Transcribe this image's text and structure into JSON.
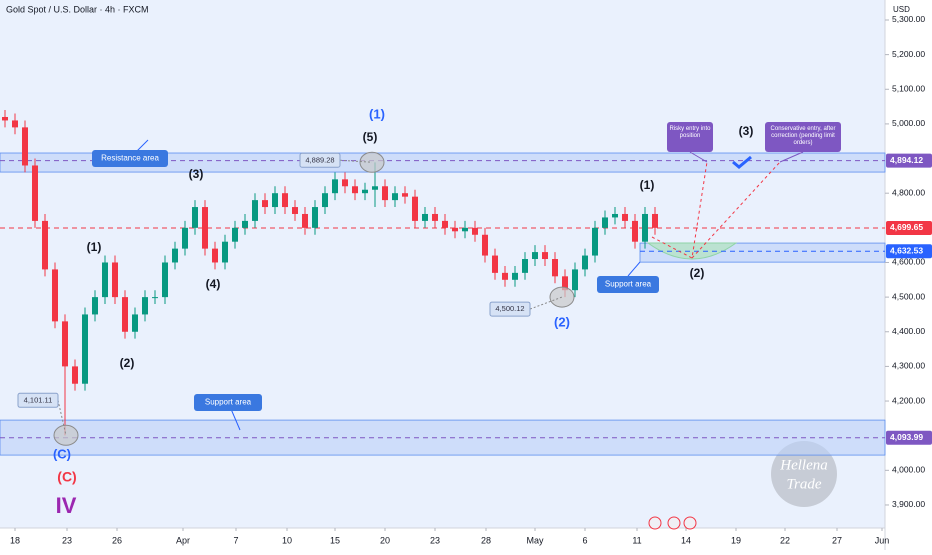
{
  "chart_data": {
    "type": "candlestick",
    "title": "Gold Spot / U.S. Dollar · 4h · FXCM",
    "currency": "USD",
    "watermark": [
      "Hellena",
      "Trade"
    ],
    "up_color": "#089981",
    "down_color": "#f23645",
    "open": [
      5020,
      5010,
      4990,
      4880,
      4720,
      4580,
      4430,
      4300,
      4250,
      4450,
      4500,
      4600,
      4500,
      4400,
      4450,
      4500,
      4500,
      4600,
      4640,
      4700,
      4760,
      4640,
      4600,
      4660,
      4700,
      4720,
      4780,
      4760,
      4800,
      4760,
      4740,
      4700,
      4760,
      4800,
      4840,
      4820,
      4800,
      4810,
      4820,
      4780,
      4800,
      4790,
      4720,
      4740,
      4720,
      4700,
      4690,
      4700,
      4680,
      4620,
      4570,
      4550,
      4570,
      4610,
      4630,
      4610,
      4560,
      4520,
      4580,
      4620,
      4700,
      4730,
      4740,
      4720,
      4660,
      4740
    ],
    "high": [
      5040,
      5030,
      5010,
      4900,
      4740,
      4600,
      4450,
      4320,
      4470,
      4520,
      4620,
      4620,
      4520,
      4470,
      4520,
      4520,
      4620,
      4660,
      4720,
      4780,
      4780,
      4660,
      4680,
      4720,
      4740,
      4800,
      4800,
      4820,
      4820,
      4780,
      4760,
      4780,
      4820,
      4860,
      4860,
      4840,
      4830,
      4889,
      4840,
      4820,
      4820,
      4810,
      4760,
      4760,
      4740,
      4720,
      4720,
      4720,
      4700,
      4640,
      4590,
      4590,
      4630,
      4650,
      4650,
      4630,
      4580,
      4600,
      4640,
      4720,
      4750,
      4760,
      4760,
      4740,
      4760,
      4760
    ],
    "low": [
      4990,
      4970,
      4860,
      4700,
      4560,
      4410,
      4101,
      4230,
      4230,
      4430,
      4480,
      4480,
      4380,
      4380,
      4430,
      4480,
      4480,
      4580,
      4620,
      4680,
      4620,
      4580,
      4580,
      4640,
      4680,
      4700,
      4740,
      4740,
      4740,
      4720,
      4680,
      4680,
      4740,
      4780,
      4800,
      4780,
      4780,
      4760,
      4760,
      4760,
      4770,
      4700,
      4700,
      4700,
      4680,
      4670,
      4670,
      4660,
      4600,
      4550,
      4530,
      4530,
      4550,
      4590,
      4590,
      4540,
      4500,
      4500,
      4560,
      4600,
      4680,
      4710,
      4700,
      4640,
      4640,
      4680
    ],
    "close": [
      5010,
      4990,
      4880,
      4720,
      4580,
      4430,
      4300,
      4250,
      4450,
      4500,
      4600,
      4500,
      4400,
      4450,
      4500,
      4500,
      4600,
      4640,
      4700,
      4760,
      4640,
      4600,
      4660,
      4700,
      4720,
      4780,
      4760,
      4800,
      4760,
      4740,
      4700,
      4760,
      4800,
      4840,
      4820,
      4800,
      4810,
      4820,
      4780,
      4800,
      4790,
      4720,
      4740,
      4720,
      4700,
      4690,
      4700,
      4680,
      4620,
      4570,
      4550,
      4570,
      4610,
      4630,
      4610,
      4560,
      4520,
      4580,
      4620,
      4700,
      4730,
      4740,
      4720,
      4660,
      4740,
      4700
    ],
    "xlim": [
      -0.5,
      88
    ],
    "xticks": [
      {
        "value": 1,
        "label": "18"
      },
      {
        "value": 6.2,
        "label": "23"
      },
      {
        "value": 11.2,
        "label": "26"
      },
      {
        "value": 17.8,
        "label": "Apr"
      },
      {
        "value": 23.1,
        "label": "7"
      },
      {
        "value": 28.2,
        "label": "10"
      },
      {
        "value": 33,
        "label": "15"
      },
      {
        "value": 38,
        "label": "20"
      },
      {
        "value": 43,
        "label": "23"
      },
      {
        "value": 48.1,
        "label": "28"
      },
      {
        "value": 53,
        "label": "May"
      },
      {
        "value": 58,
        "label": "6"
      },
      {
        "value": 63.2,
        "label": "11"
      },
      {
        "value": 68.1,
        "label": "14"
      },
      {
        "value": 73.1,
        "label": "19"
      },
      {
        "value": 78,
        "label": "22"
      },
      {
        "value": 83.2,
        "label": "27"
      },
      {
        "value": 87.7,
        "label": "Jun"
      }
    ],
    "ylim": [
      3833.5,
      5357.7
    ],
    "yticks": [
      {
        "value": 5300,
        "label": "5,300.00"
      },
      {
        "value": 5200,
        "label": "5,200.00"
      },
      {
        "value": 5100,
        "label": "5,100.00"
      },
      {
        "value": 5000,
        "label": "5,000.00"
      },
      {
        "value": 4800,
        "label": "4,800.00"
      },
      {
        "value": 4600,
        "label": "4,600.00"
      },
      {
        "value": 4500,
        "label": "4,500.00"
      },
      {
        "value": 4400,
        "label": "4,400.00"
      },
      {
        "value": 4300,
        "label": "4,300.00"
      },
      {
        "value": 4200,
        "label": "4,200.00"
      },
      {
        "value": 4000,
        "label": "4,000.00"
      },
      {
        "value": 3900,
        "label": "3,900.00"
      }
    ],
    "zones": [
      {
        "name": "Resistance area",
        "range": [
          4861,
          4916
        ]
      },
      {
        "name": "Support area",
        "range": [
          4044,
          4145
        ]
      },
      {
        "name": "Support area",
        "range": [
          4601,
          4656
        ]
      }
    ],
    "price_lines": [
      {
        "value": 4894.12,
        "label": "4,894.12",
        "color": "#7e57c2"
      },
      {
        "value": 4699.65,
        "label": "4,699.65",
        "color": "#f23645"
      },
      {
        "value": 4632.53,
        "label": "4,632.53",
        "color": "#2962ff"
      },
      {
        "value": 4093.99,
        "label": "4,093.99",
        "color": "#7e57c2"
      }
    ],
    "point_labels": [
      {
        "value": 4889.28,
        "label": "4,889.28"
      },
      {
        "value": 4500.12,
        "label": "4,500.12"
      },
      {
        "value": 4101.11,
        "label": "4,101.11"
      }
    ],
    "wave_labels": [
      "(1)",
      "(5)",
      "(3)",
      "(1)",
      "(4)",
      "(2)",
      "(C)",
      "(C)",
      "IV",
      "(2)",
      "(1)",
      "(2)",
      "(3)"
    ],
    "notes": [
      "Risky entry into position",
      "Conservative entry, after correction (pending limit orders)"
    ]
  }
}
